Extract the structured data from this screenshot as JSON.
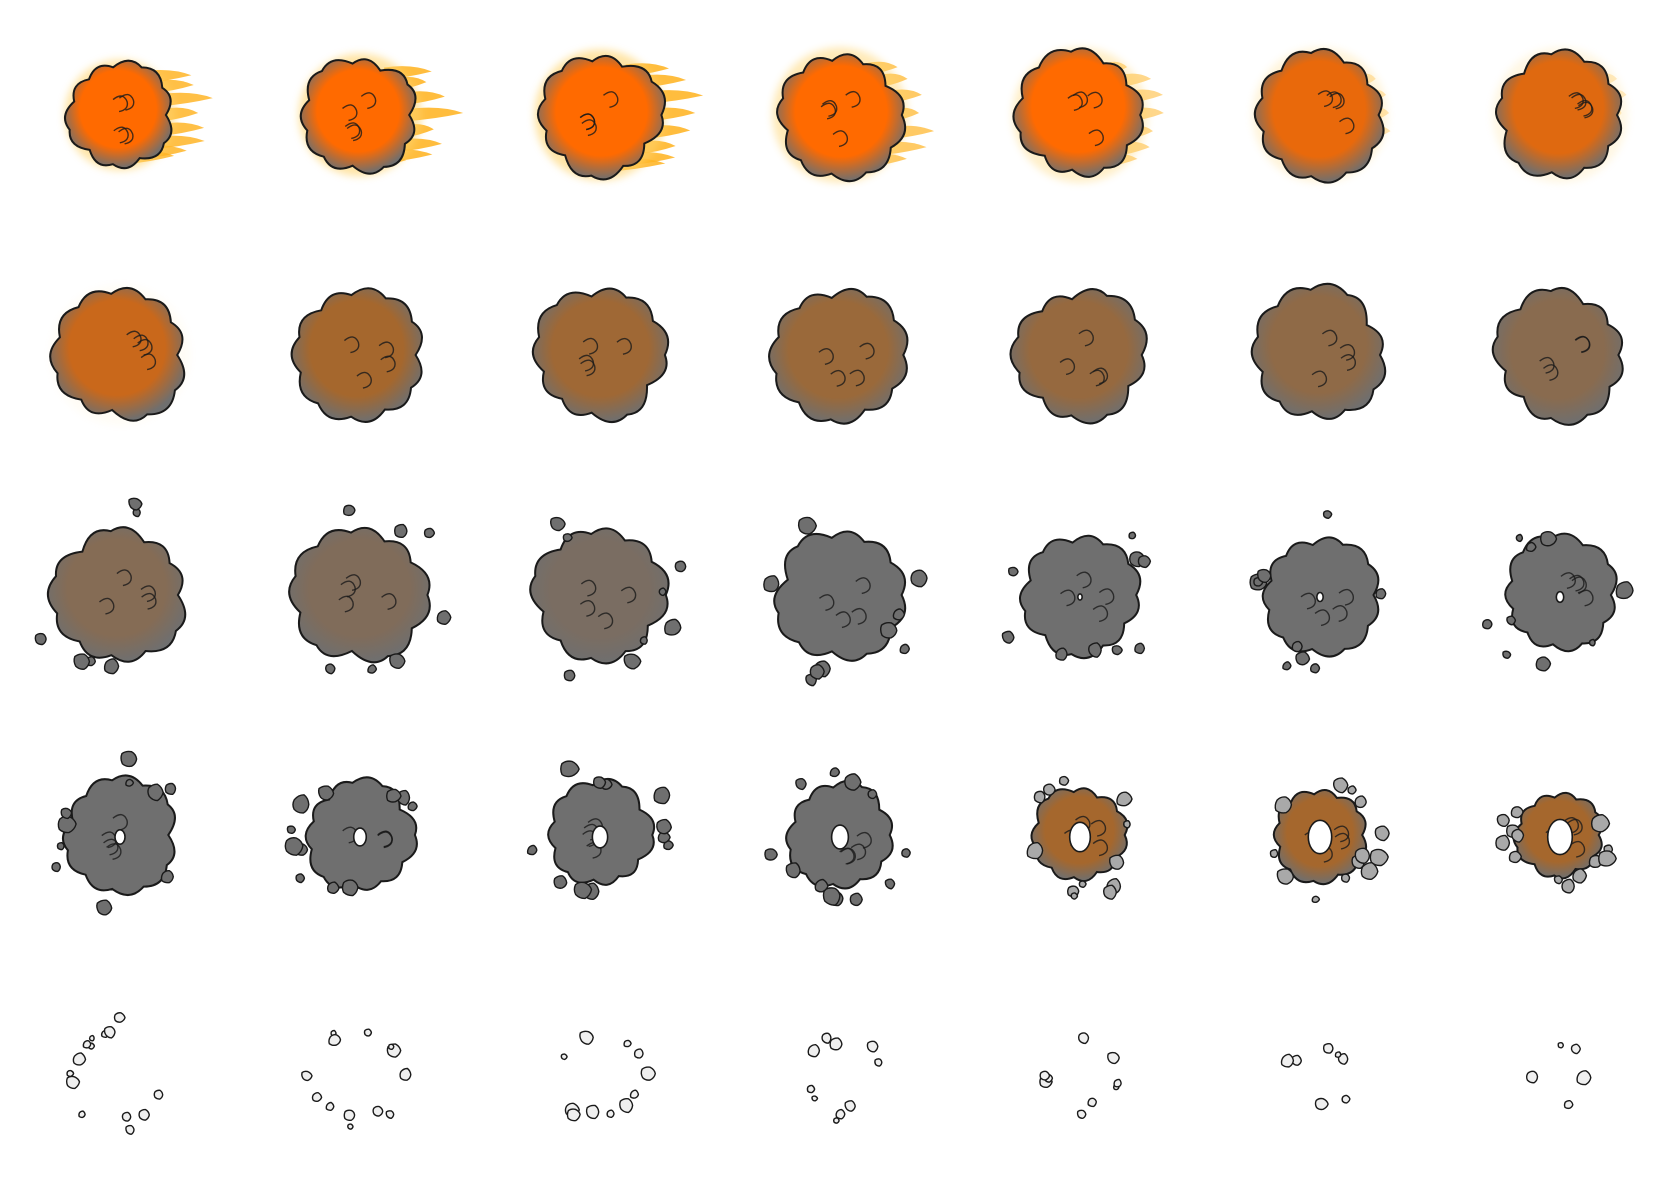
{
  "sprite_sheet": {
    "name": "explosion",
    "frame_count": 35,
    "columns": 7,
    "rows": 5,
    "palette": {
      "fire": "#ffb11c",
      "fire_glow": "#ffd36b",
      "core": "#ff6a00",
      "core_dark": "#e84d10",
      "brown": "#a5672d",
      "smoke": "#6f6f6f",
      "smoke_light": "#a9a9a9",
      "puff_white": "#efefef",
      "outline": "#1a1a1a"
    },
    "frames": [
      {
        "phase": "fire",
        "fire": 0.95,
        "smoke": 0.1,
        "scale": 0.78,
        "hole": 0,
        "debris": 0.0
      },
      {
        "phase": "fire",
        "fire": 1.0,
        "smoke": 0.15,
        "scale": 0.86,
        "hole": 0,
        "debris": 0.0
      },
      {
        "phase": "fire",
        "fire": 1.0,
        "smoke": 0.25,
        "scale": 0.92,
        "hole": 0,
        "debris": 0.0
      },
      {
        "phase": "fire",
        "fire": 0.8,
        "smoke": 0.45,
        "scale": 0.95,
        "hole": 0,
        "debris": 0.0
      },
      {
        "phase": "fire",
        "fire": 0.6,
        "smoke": 0.55,
        "scale": 0.95,
        "hole": 0,
        "debris": 0.0
      },
      {
        "phase": "fire",
        "fire": 0.4,
        "smoke": 0.6,
        "scale": 0.95,
        "hole": 0,
        "debris": 0.0
      },
      {
        "phase": "fire",
        "fire": 0.3,
        "smoke": 0.65,
        "scale": 0.95,
        "hole": 0,
        "debris": 0.0
      },
      {
        "phase": "smoke",
        "fire": 0.1,
        "smoke": 0.7,
        "scale": 0.98,
        "hole": 0,
        "debris": 0.0
      },
      {
        "phase": "smoke",
        "fire": 0.0,
        "smoke": 0.75,
        "scale": 0.98,
        "hole": 0,
        "debris": 0.0
      },
      {
        "phase": "smoke",
        "fire": 0.0,
        "smoke": 0.78,
        "scale": 0.98,
        "hole": 0,
        "debris": 0.0
      },
      {
        "phase": "smoke",
        "fire": 0.0,
        "smoke": 0.8,
        "scale": 0.98,
        "hole": 0,
        "debris": 0.0
      },
      {
        "phase": "smoke",
        "fire": 0.0,
        "smoke": 0.82,
        "scale": 0.98,
        "hole": 0,
        "debris": 0.0
      },
      {
        "phase": "smoke",
        "fire": 0.0,
        "smoke": 0.85,
        "scale": 0.98,
        "hole": 0,
        "debris": 0.0
      },
      {
        "phase": "smoke",
        "fire": 0.0,
        "smoke": 0.88,
        "scale": 0.98,
        "hole": 0,
        "debris": 0.0
      },
      {
        "phase": "smoke",
        "fire": 0.0,
        "smoke": 0.9,
        "scale": 1.0,
        "hole": 0,
        "debris": 0.2
      },
      {
        "phase": "smoke",
        "fire": 0.0,
        "smoke": 0.92,
        "scale": 1.0,
        "hole": 0,
        "debris": 0.3
      },
      {
        "phase": "smoke",
        "fire": 0.0,
        "smoke": 0.95,
        "scale": 1.0,
        "hole": 0,
        "debris": 0.4
      },
      {
        "phase": "smoke",
        "fire": 0.0,
        "smoke": 1.0,
        "scale": 0.96,
        "hole": 0,
        "debris": 0.5
      },
      {
        "phase": "smoke",
        "fire": 0.0,
        "smoke": 1.0,
        "scale": 0.9,
        "hole": 0.1,
        "debris": 0.5
      },
      {
        "phase": "smoke",
        "fire": 0.0,
        "smoke": 1.0,
        "scale": 0.88,
        "hole": 0.15,
        "debris": 0.5
      },
      {
        "phase": "smoke",
        "fire": 0.0,
        "smoke": 1.0,
        "scale": 0.86,
        "hole": 0.18,
        "debris": 0.5
      },
      {
        "phase": "dissipate",
        "fire": 0.0,
        "smoke": 1.0,
        "scale": 0.84,
        "hole": 0.25,
        "debris": 0.6
      },
      {
        "phase": "dissipate",
        "fire": 0.0,
        "smoke": 1.0,
        "scale": 0.82,
        "hole": 0.32,
        "debris": 0.7
      },
      {
        "phase": "dissipate",
        "fire": 0.0,
        "smoke": 1.0,
        "scale": 0.8,
        "hole": 0.4,
        "debris": 0.7
      },
      {
        "phase": "dissipate",
        "fire": 0.0,
        "smoke": 1.0,
        "scale": 0.78,
        "hole": 0.45,
        "debris": 0.8
      },
      {
        "phase": "dissipate",
        "fire": 0.0,
        "smoke": 0.75,
        "scale": 0.72,
        "hole": 0.6,
        "debris": 0.8
      },
      {
        "phase": "dissipate",
        "fire": 0.0,
        "smoke": 0.5,
        "scale": 0.7,
        "hole": 0.7,
        "debris": 0.9
      },
      {
        "phase": "dissipate",
        "fire": 0.0,
        "smoke": 0.35,
        "scale": 0.66,
        "hole": 0.78,
        "debris": 0.9
      },
      {
        "phase": "remnants",
        "fire": 0.0,
        "smoke": 0.2,
        "scale": 0.62,
        "hole": 0.9,
        "debris": 1.0
      },
      {
        "phase": "remnants",
        "fire": 0.0,
        "smoke": 0.1,
        "scale": 0.58,
        "hole": 0.94,
        "debris": 0.9
      },
      {
        "phase": "remnants",
        "fire": 0.0,
        "smoke": 0.05,
        "scale": 0.54,
        "hole": 0.96,
        "debris": 0.8
      },
      {
        "phase": "remnants",
        "fire": 0.0,
        "smoke": 0.02,
        "scale": 0.5,
        "hole": 0.98,
        "debris": 0.6
      },
      {
        "phase": "remnants",
        "fire": 0.0,
        "smoke": 0.0,
        "scale": 0.46,
        "hole": 1.0,
        "debris": 0.45
      },
      {
        "phase": "remnants",
        "fire": 0.0,
        "smoke": 0.0,
        "scale": 0.4,
        "hole": 1.0,
        "debris": 0.25
      },
      {
        "phase": "remnants",
        "fire": 0.0,
        "smoke": 0.0,
        "scale": 0.34,
        "hole": 1.0,
        "debris": 0.12
      }
    ]
  }
}
